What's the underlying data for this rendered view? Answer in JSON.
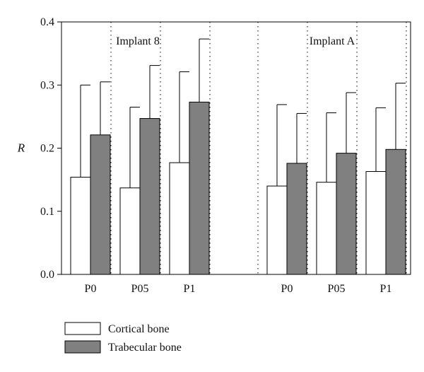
{
  "chart_data": {
    "type": "bar",
    "ylabel": "R",
    "ylim": [
      0,
      0.4
    ],
    "yticks": [
      "0.0",
      "0.1",
      "0.2",
      "0.3",
      "0.4"
    ],
    "colors": {
      "cortical": "#ffffff",
      "trabecular": "#808080",
      "axis": "#000000"
    },
    "groups": [
      {
        "title": "Implant 8",
        "categories": [
          "P0",
          "P05",
          "P1"
        ],
        "series": [
          {
            "name": "Cortical bone",
            "values": [
              0.154,
              0.137,
              0.177
            ],
            "errors": [
              0.146,
              0.128,
              0.144
            ]
          },
          {
            "name": "Trabecular bone",
            "values": [
              0.221,
              0.247,
              0.273
            ],
            "errors": [
              0.084,
              0.084,
              0.1
            ]
          }
        ]
      },
      {
        "title": "Implant A",
        "categories": [
          "P0",
          "P05",
          "P1"
        ],
        "series": [
          {
            "name": "Cortical bone",
            "values": [
              0.14,
              0.146,
              0.163
            ],
            "errors": [
              0.129,
              0.11,
              0.101
            ]
          },
          {
            "name": "Trabecular bone",
            "values": [
              0.176,
              0.192,
              0.198
            ],
            "errors": [
              0.079,
              0.096,
              0.105
            ]
          }
        ]
      }
    ],
    "legend": [
      {
        "label": "Cortical bone",
        "series": "cortical"
      },
      {
        "label": "Trabecular bone",
        "series": "trabecular"
      }
    ],
    "legend_position": "bottom-left",
    "grid": false
  }
}
